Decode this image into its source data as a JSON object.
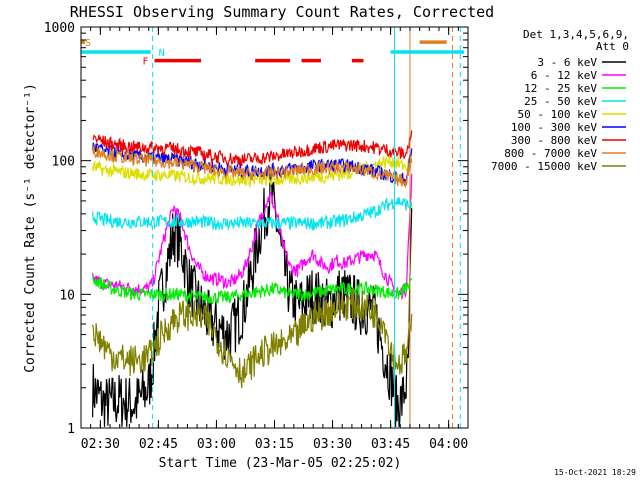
{
  "chart_data": {
    "type": "line",
    "title": "RHESSI Observing Summary Count Rates, Corrected",
    "xlabel": "Start Time (23-Mar-05 02:25:02)",
    "ylabel": "Corrected Count Rate (s⁻¹ detector⁻¹)",
    "x_unit": "minutes after 02:25:02",
    "xlim": [
      0,
      100
    ],
    "ylim": [
      1,
      1000
    ],
    "yscale": "log",
    "grid": false,
    "legend_placement": "right",
    "legend_header": [
      "Det 1,3,4,5,6,9,",
      "Att 0"
    ],
    "x_ticks": [
      {
        "x": 5,
        "label": "02:30"
      },
      {
        "x": 20,
        "label": "02:45"
      },
      {
        "x": 35,
        "label": "03:00"
      },
      {
        "x": 50,
        "label": "03:15"
      },
      {
        "x": 65,
        "label": "03:30"
      },
      {
        "x": 80,
        "label": "03:45"
      },
      {
        "x": 95,
        "label": "04:00"
      }
    ],
    "y_ticks": [
      {
        "y": 1,
        "label": "1"
      },
      {
        "y": 10,
        "label": "10"
      },
      {
        "y": 100,
        "label": "100"
      },
      {
        "y": 1000,
        "label": "1000"
      }
    ],
    "footer_date": "15-Oct-2021 18:29",
    "flag_bars": [
      {
        "label": "S",
        "color": "#e07f1f",
        "segments": [
          [
            0,
            1
          ],
          [
            87.5,
            94.5
          ]
        ],
        "level": 770
      },
      {
        "label": "N",
        "color": "#00e5ee",
        "segments": [
          [
            0,
            18
          ],
          [
            80,
            99
          ]
        ],
        "level": 650
      },
      {
        "label": "F",
        "color": "#ee0000",
        "segments": [
          [
            19,
            31
          ],
          [
            45,
            54
          ],
          [
            57,
            62
          ],
          [
            70,
            73
          ]
        ],
        "level": 560
      }
    ],
    "vertical_markers": [
      {
        "x": 0,
        "color": "#00e5ee",
        "style": "dashed"
      },
      {
        "x": 18.5,
        "color": "#00e5ee",
        "style": "dashed"
      },
      {
        "x": 81,
        "color": "#00e5ee",
        "style": "solid"
      },
      {
        "x": 85,
        "color": "#e07f1f",
        "style": "solid"
      },
      {
        "x": 96,
        "color": "#e07f1f",
        "style": "dashed"
      },
      {
        "x": 98,
        "color": "#00e5ee",
        "style": "dashed"
      }
    ],
    "series": [
      {
        "name": "3 - 6 keV",
        "color": "#000000",
        "x": [
          3,
          6,
          10,
          14,
          17.5,
          18.5,
          20,
          22,
          24,
          26,
          28,
          30,
          32,
          34,
          36,
          38,
          40,
          42,
          44,
          46,
          48,
          49,
          50,
          51,
          52,
          54,
          56,
          58,
          60,
          62,
          64,
          66,
          68,
          70,
          72,
          74,
          76,
          78,
          80,
          81.5,
          83,
          84.5,
          85.5
        ],
        "y": [
          2,
          1.5,
          1.6,
          1.5,
          2,
          3,
          8,
          15,
          30,
          22,
          12,
          9,
          7,
          6,
          5.5,
          5,
          6,
          8,
          14,
          28,
          45,
          60,
          40,
          30,
          18,
          10,
          8,
          9,
          10,
          9,
          8,
          10,
          10,
          9,
          8,
          8,
          7,
          4,
          2.5,
          1.5,
          1.6,
          2.5,
          40
        ]
      },
      {
        "name": "6 - 12 keV",
        "color": "#ff00ff",
        "x": [
          3,
          6,
          10,
          14,
          17,
          18.5,
          20,
          22,
          24,
          26,
          28,
          30,
          32,
          34,
          36,
          38,
          40,
          42,
          44,
          46,
          48,
          49,
          50,
          51,
          52,
          54,
          56,
          58,
          60,
          62,
          64,
          66,
          68,
          70,
          72,
          74,
          76,
          78,
          80,
          82,
          84,
          85.5
        ],
        "y": [
          13,
          12,
          11.5,
          11,
          11,
          12,
          18,
          30,
          45,
          35,
          22,
          16,
          14,
          13,
          13,
          12,
          13,
          15,
          22,
          35,
          50,
          55,
          45,
          35,
          24,
          16,
          15,
          18,
          20,
          17,
          16,
          18,
          17,
          18,
          19,
          20,
          20,
          15,
          12,
          10,
          11,
          80
        ]
      },
      {
        "name": "12 - 25 keV",
        "color": "#00ee00",
        "x": [
          3,
          8,
          14,
          18.5,
          22,
          26,
          30,
          34,
          38,
          42,
          46,
          50,
          54,
          58,
          62,
          66,
          70,
          74,
          78,
          82,
          85.5
        ],
        "y": [
          13,
          11,
          10,
          10,
          10,
          10,
          9.5,
          9.5,
          9.5,
          10,
          10.5,
          11,
          10,
          10,
          10.5,
          11,
          11,
          11,
          10.5,
          10,
          12
        ]
      },
      {
        "name": "25 - 50 keV",
        "color": "#00e5ee",
        "x": [
          3,
          6,
          10,
          14,
          18,
          22,
          26,
          30,
          34,
          38,
          42,
          46,
          50,
          54,
          58,
          62,
          66,
          70,
          74,
          76,
          78,
          80,
          82,
          84,
          85.5
        ],
        "y": [
          38,
          36,
          35,
          35,
          35,
          35,
          35,
          35,
          34,
          34,
          34,
          34,
          34,
          34,
          34,
          34,
          35,
          37,
          40,
          42,
          45,
          48,
          50,
          47,
          45
        ]
      },
      {
        "name": "50 - 100 keV",
        "color": "#dddd00",
        "x": [
          3,
          6,
          10,
          14,
          18,
          22,
          26,
          30,
          34,
          38,
          42,
          46,
          50,
          54,
          58,
          62,
          66,
          70,
          74,
          77,
          80,
          82,
          84,
          85.5
        ],
        "y": [
          90,
          85,
          82,
          80,
          78,
          78,
          76,
          74,
          74,
          73,
          72,
          72,
          72,
          73,
          75,
          76,
          78,
          82,
          88,
          95,
          100,
          95,
          90,
          100
        ]
      },
      {
        "name": "100 - 300 keV",
        "color": "#0000ff",
        "x": [
          3,
          6,
          10,
          14,
          18,
          22,
          26,
          30,
          34,
          38,
          42,
          46,
          50,
          54,
          58,
          62,
          66,
          70,
          74,
          78,
          82,
          84,
          85.5
        ],
        "y": [
          128,
          118,
          112,
          108,
          105,
          103,
          100,
          96,
          90,
          86,
          84,
          84,
          85,
          87,
          90,
          92,
          93,
          91,
          87,
          80,
          74,
          72,
          120
        ]
      },
      {
        "name": "300 - 800 keV",
        "color": "#ee0000",
        "x": [
          3,
          6,
          10,
          14,
          18,
          22,
          26,
          30,
          34,
          38,
          42,
          46,
          50,
          54,
          58,
          62,
          66,
          70,
          74,
          78,
          82,
          84,
          85.5
        ],
        "y": [
          150,
          138,
          130,
          126,
          125,
          124,
          120,
          115,
          108,
          104,
          102,
          104,
          108,
          113,
          120,
          126,
          130,
          131,
          128,
          122,
          115,
          112,
          160
        ]
      },
      {
        "name": "800 - 7000 keV",
        "color": "#e07f1f",
        "x": [
          3,
          6,
          10,
          14,
          18,
          22,
          26,
          30,
          34,
          38,
          42,
          46,
          50,
          54,
          58,
          62,
          66,
          70,
          74,
          78,
          82,
          84,
          85.5
        ],
        "y": [
          122,
          113,
          107,
          103,
          100,
          98,
          95,
          91,
          86,
          82,
          80,
          80,
          81,
          83,
          86,
          88,
          89,
          88,
          84,
          78,
          72,
          70,
          110
        ]
      },
      {
        "name": "7000 - 15000 keV",
        "color": "#808000",
        "x": [
          3,
          5,
          8,
          12,
          15,
          18,
          20,
          22,
          24,
          26,
          28,
          30,
          32,
          34,
          36,
          38,
          40,
          42,
          44,
          46,
          48,
          50,
          52,
          54,
          56,
          58,
          60,
          62,
          64,
          66,
          68,
          70,
          72,
          74,
          76,
          78,
          80,
          82,
          84,
          85.5
        ],
        "y": [
          5.5,
          4.5,
          3.5,
          3.2,
          3.2,
          3.5,
          4.5,
          5.5,
          6.5,
          7,
          7,
          6.8,
          6.5,
          5.5,
          4.2,
          3.5,
          3,
          2.5,
          3,
          3.5,
          3.8,
          4,
          4.2,
          4.5,
          5,
          6,
          6.8,
          7,
          7.5,
          8,
          8.3,
          8.5,
          8.2,
          7.8,
          7.2,
          6.5,
          4,
          3,
          3.5,
          6
        ]
      }
    ]
  }
}
